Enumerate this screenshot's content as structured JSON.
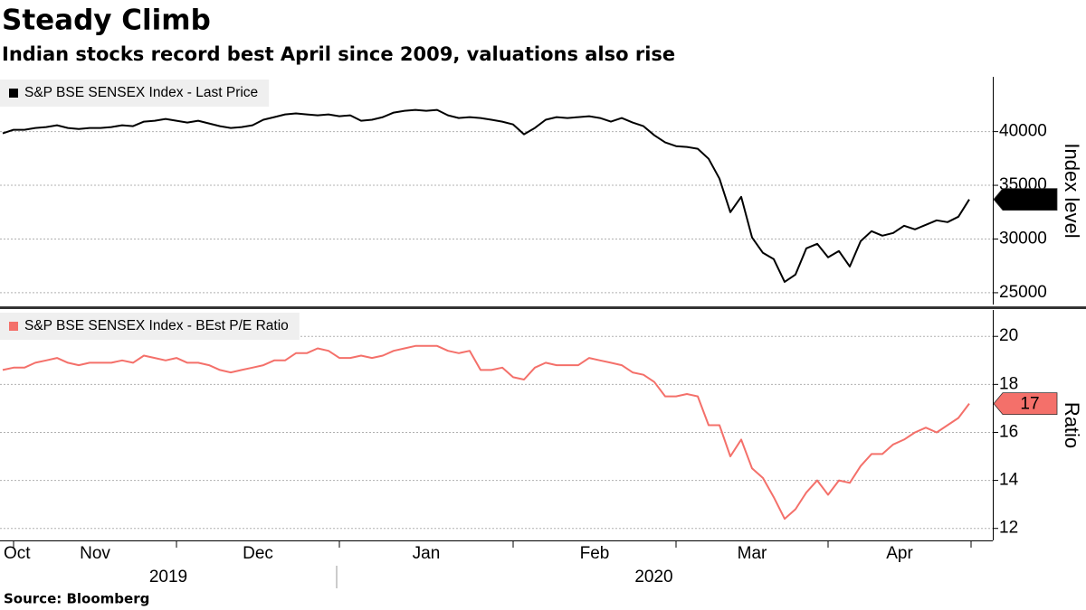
{
  "title": "Steady Climb",
  "subtitle": "Indian stocks record best April since 2009, valuations also rise",
  "source": "Source: Bloomberg",
  "chart_data": [
    {
      "type": "line",
      "series": [
        {
          "name": "S&P BSE SENSEX Index - Last Price",
          "color": "#000000",
          "values": [
            39830,
            40170,
            40170,
            40340,
            40420,
            40590,
            40340,
            40250,
            40340,
            40340,
            40420,
            40590,
            40510,
            40930,
            41010,
            41180,
            41010,
            40840,
            41010,
            40760,
            40510,
            40340,
            40420,
            40590,
            41100,
            41350,
            41600,
            41690,
            41600,
            41520,
            41600,
            41430,
            41520,
            41010,
            41100,
            41350,
            41770,
            41940,
            42020,
            41940,
            42020,
            41520,
            41260,
            41350,
            41260,
            41100,
            40930,
            40670,
            39750,
            40340,
            41100,
            41350,
            41260,
            41350,
            41430,
            41260,
            40930,
            41260,
            40840,
            40510,
            39660,
            38990,
            38650,
            38570,
            38400,
            37470,
            35620,
            32500,
            33930,
            30140,
            28710,
            28120,
            26010,
            26690,
            29130,
            29550,
            28290,
            28880,
            27440,
            29800,
            30730,
            30310,
            30560,
            31240,
            30900,
            31320,
            31740,
            31570,
            32080,
            33688
          ],
          "label_last": true,
          "label_text_color": "#ffffff"
        }
      ],
      "ylabel": "Index level",
      "ylim": [
        23900,
        45100
      ],
      "yticks": [
        25000,
        30000,
        35000,
        40000
      ],
      "grid": true,
      "legend": "upper left"
    },
    {
      "type": "line",
      "categories": [
        "Oct",
        "Nov",
        null,
        null,
        null,
        null,
        null,
        null,
        null,
        null,
        null,
        null,
        null,
        null,
        null,
        null,
        "Dec",
        null,
        null,
        null,
        null,
        null,
        null,
        null,
        null,
        null,
        null,
        null,
        null,
        null,
        null,
        "Jan",
        null,
        null,
        null,
        null,
        null,
        null,
        null,
        null,
        null,
        null,
        null,
        null,
        null,
        null,
        null,
        "Feb",
        null,
        null,
        null,
        null,
        null,
        null,
        null,
        null,
        null,
        null,
        null,
        null,
        null,
        null,
        "Mar",
        null,
        null,
        null,
        null,
        null,
        null,
        null,
        null,
        null,
        null,
        null,
        null,
        null,
        "Apr",
        null,
        null,
        null,
        null,
        null,
        null,
        null,
        null,
        null,
        null,
        null,
        null,
        null
      ],
      "year_categories": [
        "2019",
        null,
        null,
        null,
        null,
        null,
        null,
        null,
        null,
        null,
        null,
        null,
        null,
        null,
        null,
        null,
        null,
        null,
        null,
        null,
        null,
        null,
        null,
        null,
        null,
        null,
        null,
        null,
        null,
        null,
        null,
        "2020",
        null,
        null,
        null,
        null,
        null,
        null,
        null,
        null,
        null,
        null,
        null,
        null,
        null,
        null,
        null,
        null,
        null,
        null,
        null,
        null,
        null,
        null,
        null,
        null,
        null,
        null,
        null,
        null,
        null,
        null,
        null,
        null,
        null,
        null,
        null,
        null,
        null,
        null,
        null,
        null,
        null,
        null,
        null,
        null,
        null,
        null,
        null,
        null,
        null,
        null,
        null,
        null,
        null,
        null,
        null,
        null,
        null,
        null
      ],
      "series": [
        {
          "name": "S&P BSE SENSEX Index - BEst P/E Ratio",
          "color": "#f4706a",
          "values": [
            18.6,
            18.7,
            18.7,
            18.9,
            19.0,
            19.1,
            18.9,
            18.8,
            18.9,
            18.9,
            18.9,
            19.0,
            18.9,
            19.2,
            19.1,
            19.0,
            19.1,
            18.9,
            18.9,
            18.8,
            18.6,
            18.5,
            18.6,
            18.7,
            18.8,
            19.0,
            19.0,
            19.3,
            19.3,
            19.5,
            19.4,
            19.1,
            19.1,
            19.2,
            19.1,
            19.2,
            19.4,
            19.5,
            19.6,
            19.6,
            19.6,
            19.4,
            19.3,
            19.4,
            18.6,
            18.6,
            18.7,
            18.3,
            18.2,
            18.7,
            18.9,
            18.8,
            18.8,
            18.8,
            19.1,
            19.0,
            18.9,
            18.8,
            18.5,
            18.4,
            18.1,
            17.5,
            17.5,
            17.6,
            17.5,
            16.3,
            16.3,
            15.0,
            15.7,
            14.5,
            14.1,
            13.3,
            12.4,
            12.8,
            13.5,
            14.0,
            13.4,
            14.0,
            13.9,
            14.6,
            15.1,
            15.1,
            15.5,
            15.7,
            16.0,
            16.2,
            16.0,
            16.3,
            16.6,
            17.2
          ],
          "value_labels": [
            null,
            null,
            null,
            null,
            null,
            null,
            null,
            null,
            null,
            null,
            null,
            null,
            null,
            null,
            null,
            null,
            null,
            null,
            null,
            null,
            null,
            null,
            null,
            null,
            null,
            null,
            null,
            null,
            null,
            null,
            null,
            null,
            null,
            null,
            null,
            null,
            null,
            null,
            null,
            null,
            null,
            null,
            null,
            null,
            null,
            null,
            null,
            null,
            null,
            null,
            null,
            null,
            null,
            null,
            null,
            null,
            null,
            null,
            null,
            null,
            null,
            null,
            null,
            null,
            null,
            null,
            null,
            null,
            null,
            null,
            null,
            null,
            null,
            null,
            null,
            null,
            null,
            null,
            null,
            null,
            null,
            null,
            null,
            null,
            null,
            null,
            null,
            null,
            null,
            "17"
          ],
          "label_last": true,
          "label_text_color": "#000000"
        }
      ],
      "ylabel": "Ratio",
      "ylim": [
        11.5,
        21.1
      ],
      "yticks": [
        12,
        14,
        16,
        18,
        20
      ],
      "grid": true,
      "legend": "upper left"
    }
  ]
}
